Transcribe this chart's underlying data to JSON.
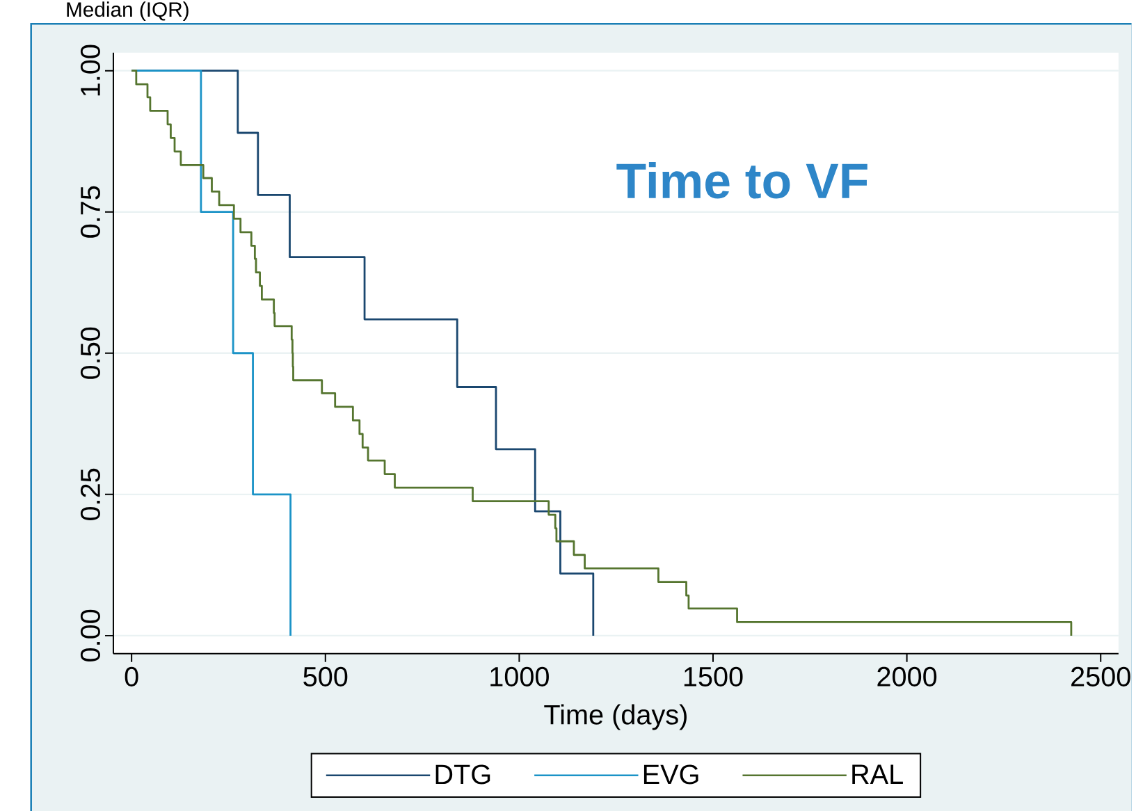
{
  "chart_data": {
    "type": "step",
    "title": "Time to VF",
    "xlabel": "Time (days)",
    "annotations": [
      "Median (IQR)"
    ],
    "xlim": [
      -47,
      2546
    ],
    "ylim": [
      -0.032,
      1.032
    ],
    "xticks": [
      0,
      500,
      1000,
      1500,
      2000,
      2500
    ],
    "yticks": [
      {
        "value": 0,
        "label": "0.00"
      },
      {
        "value": 0.25,
        "label": "0.25"
      },
      {
        "value": 0.5,
        "label": "0.50"
      },
      {
        "value": 0.75,
        "label": "0.75"
      },
      {
        "value": 1,
        "label": "1.00"
      }
    ],
    "grid": "y",
    "legend": "bottom",
    "marker": "none",
    "line_style": "solid",
    "series": [
      {
        "name": "DTG",
        "color": "#1a476f",
        "x": [
          0,
          274,
          326,
          408,
          601,
          840,
          940,
          1041,
          1106,
          1191
        ],
        "values": [
          1,
          0.89,
          0.78,
          0.67,
          0.56,
          0.44,
          0.33,
          0.22,
          0.11,
          0
        ]
      },
      {
        "name": "EVG",
        "color": "#1b93c7",
        "x": [
          0,
          179,
          262,
          313,
          410
        ],
        "values": [
          1,
          0.75,
          0.5,
          0.25,
          0
        ]
      },
      {
        "name": "RAL",
        "color": "#55752f",
        "x": [
          0,
          12,
          41,
          48,
          93,
          101,
          111,
          127,
          185,
          207,
          226,
          264,
          281,
          309,
          318,
          321,
          331,
          336,
          367,
          369,
          413,
          415,
          416,
          417,
          491,
          525,
          571,
          588,
          596,
          610,
          653,
          679,
          880,
          1076,
          1093,
          1096,
          1141,
          1169,
          1359,
          1431,
          1437,
          1562,
          2424
        ],
        "values": [
          1,
          0.976,
          0.953,
          0.929,
          0.905,
          0.881,
          0.857,
          0.833,
          0.81,
          0.786,
          0.762,
          0.738,
          0.714,
          0.69,
          0.667,
          0.643,
          0.619,
          0.595,
          0.571,
          0.548,
          0.524,
          0.5,
          0.476,
          0.452,
          0.429,
          0.405,
          0.381,
          0.357,
          0.333,
          0.31,
          0.286,
          0.262,
          0.238,
          0.214,
          0.19,
          0.167,
          0.143,
          0.119,
          0.095,
          0.071,
          0.048,
          0.024,
          0
        ]
      }
    ]
  }
}
